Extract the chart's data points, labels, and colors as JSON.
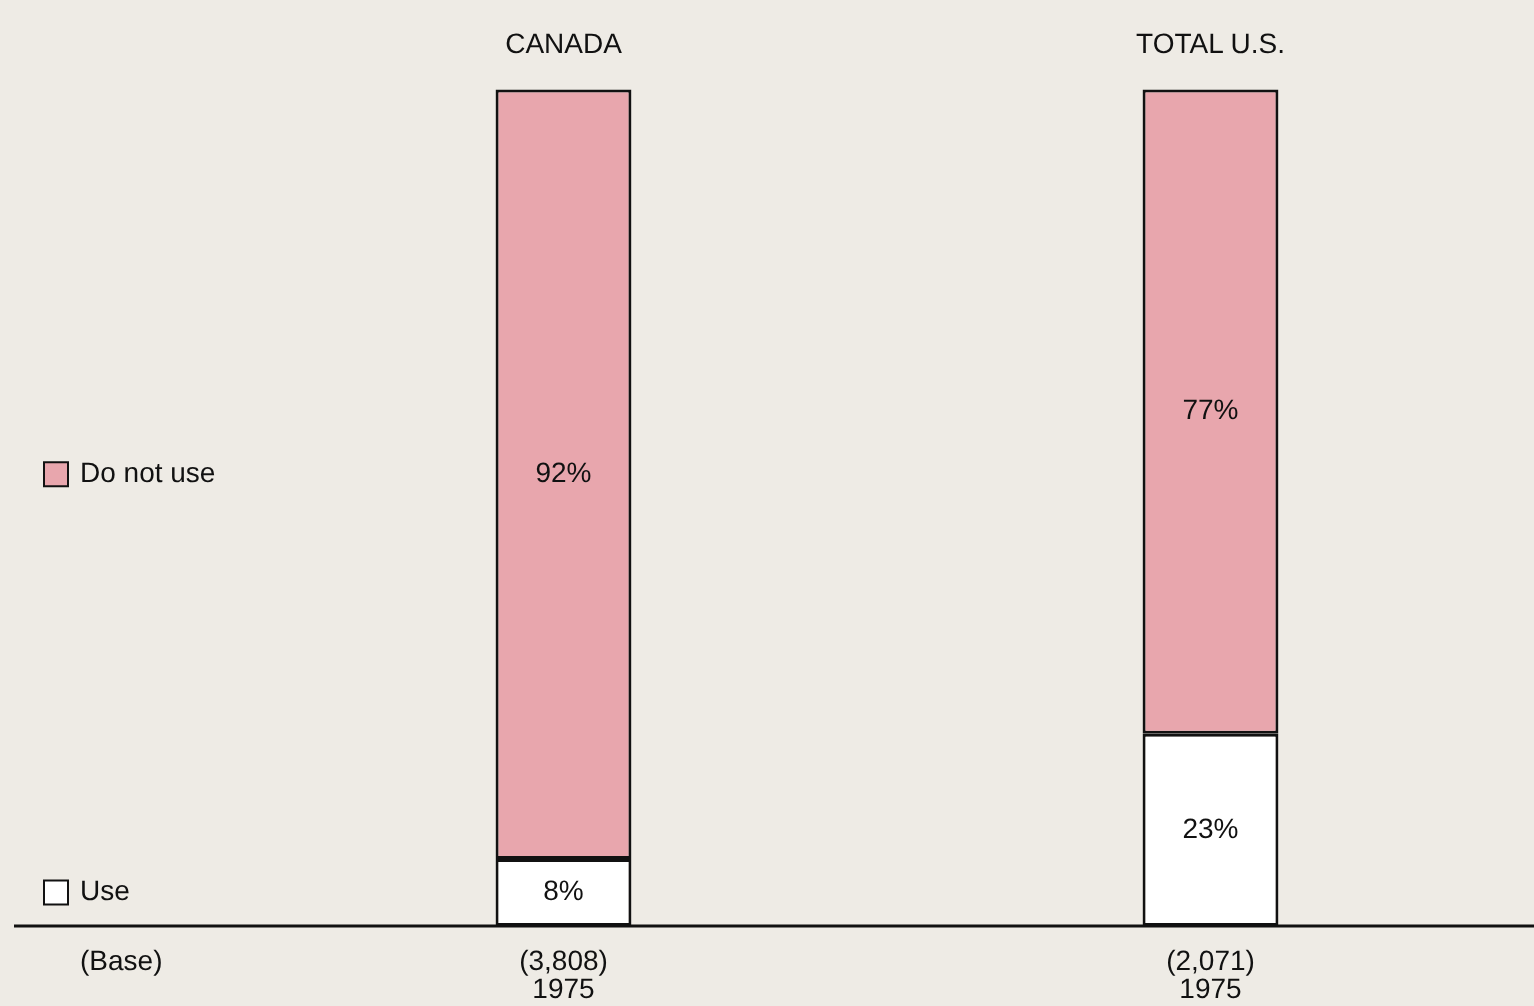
{
  "chart_data": {
    "type": "bar",
    "stacked": true,
    "categories": [
      "CANADA",
      "TOTAL U.S."
    ],
    "series": [
      {
        "name": "Use",
        "color": "#ffffff",
        "values": [
          8,
          23
        ],
        "value_labels": [
          "8%",
          "23%"
        ]
      },
      {
        "name": "Do not use",
        "color": "#e8a6ad",
        "values": [
          92,
          77
        ],
        "value_labels": [
          "92%",
          "77%"
        ]
      }
    ],
    "legend": "left",
    "grid": false,
    "tick_labels": "x",
    "annotations": [
      "(Base)",
      "(3,808)\n1975",
      "(2,071)\n1975"
    ]
  }
}
